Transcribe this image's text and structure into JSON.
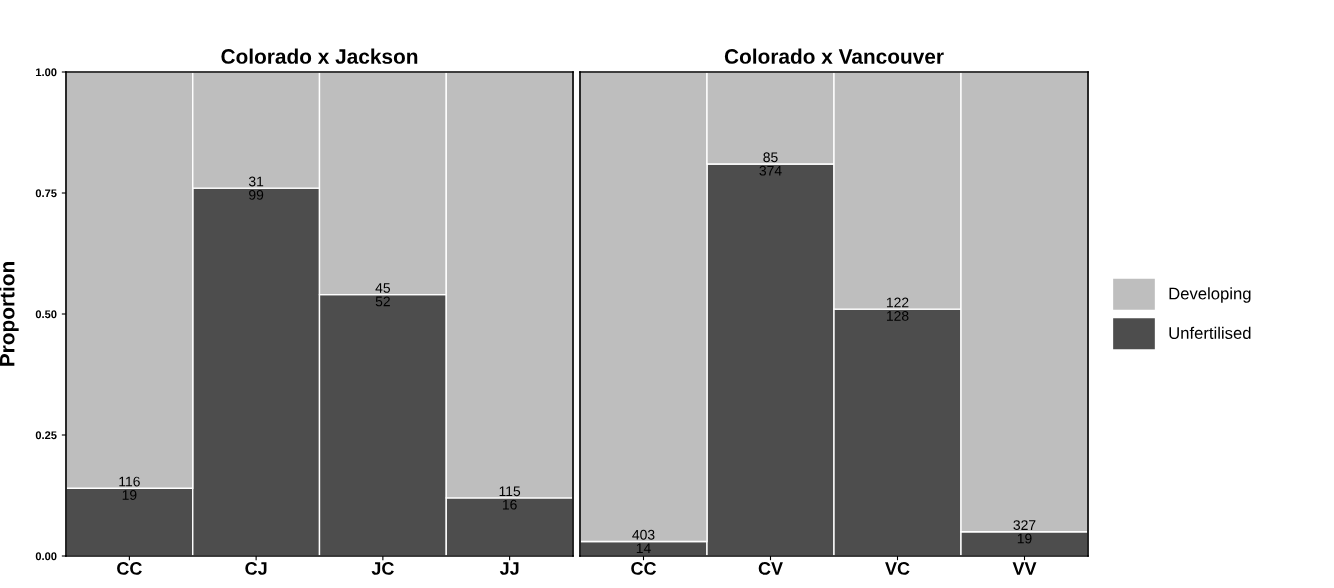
{
  "chart_data": [
    {
      "type": "bar",
      "title": "Colorado x Jackson",
      "ylabel": "Proportion",
      "categories": [
        "CC",
        "CJ",
        "JC",
        "JJ"
      ],
      "stacked": true,
      "ylim": [
        0,
        1
      ],
      "yticks": [
        {
          "value": 0,
          "label": "0.00"
        },
        {
          "value": 0.25,
          "label": "0.25"
        },
        {
          "value": 0.5,
          "label": "0.50"
        },
        {
          "value": 0.75,
          "label": "0.75"
        },
        {
          "value": 1,
          "label": "1.00"
        }
      ],
      "grid": false,
      "series": [
        {
          "color": "#4d4d4d",
          "values": [
            0.14,
            0.76,
            0.54,
            0.12
          ]
        },
        {
          "color": "#bebebe",
          "values": [
            0.86,
            0.24,
            0.46,
            0.88
          ]
        }
      ],
      "annotations": [
        {
          "text": "19",
          "x": "CC",
          "y": 0.14
        },
        {
          "text": "99",
          "x": "CJ",
          "y": 0.76
        },
        {
          "text": "52",
          "x": "JC",
          "y": 0.54
        },
        {
          "text": "16",
          "x": "JJ",
          "y": 0.12
        },
        {
          "text": "116",
          "x": "CC",
          "y": 0.14
        },
        {
          "text": "31",
          "x": "CJ",
          "y": 0.76
        },
        {
          "text": "45",
          "x": "JC",
          "y": 0.54
        },
        {
          "text": "115",
          "x": "JJ",
          "y": 0.12
        }
      ]
    },
    {
      "type": "bar",
      "title": "Colorado x Vancouver",
      "categories": [
        "CC",
        "CV",
        "VC",
        "VV"
      ],
      "stacked": true,
      "ylim": [
        0,
        1
      ],
      "tick_labels": "x",
      "grid": false,
      "legend": "right",
      "series": [
        {
          "name": "Unfertilised",
          "color": "#4d4d4d",
          "values": [
            0.03,
            0.81,
            0.51,
            0.05
          ]
        },
        {
          "name": "Developing",
          "color": "#bebebe",
          "values": [
            0.97,
            0.19,
            0.49,
            0.95
          ]
        }
      ],
      "annotations": [
        {
          "text": "14",
          "x": "CC",
          "y": 0.03
        },
        {
          "text": "374",
          "x": "CV",
          "y": 0.81
        },
        {
          "text": "128",
          "x": "VC",
          "y": 0.51
        },
        {
          "text": "19",
          "x": "VV",
          "y": 0.05
        },
        {
          "text": "403",
          "x": "CC",
          "y": 0.03
        },
        {
          "text": "85",
          "x": "CV",
          "y": 0.81
        },
        {
          "text": "122",
          "x": "VC",
          "y": 0.51
        },
        {
          "text": "327",
          "x": "VV",
          "y": 0.05
        }
      ]
    }
  ]
}
